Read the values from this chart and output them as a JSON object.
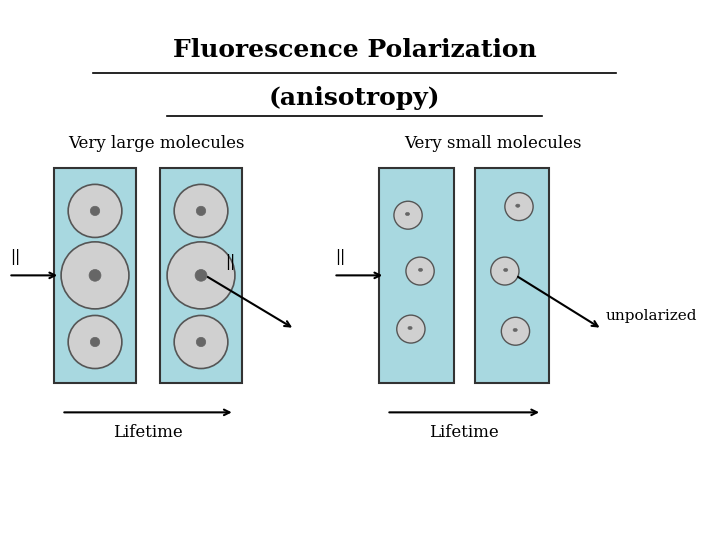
{
  "title_line1": "Fluorescence Polarization",
  "title_line2": "(anisotropy)",
  "bg_color": "#ffffff",
  "box_color": "#a8d8e0",
  "box_edge_color": "#333333",
  "large_label": "Very large molecules",
  "small_label": "Very small molecules",
  "unpolarized_label": "unpolarized",
  "lifetime_label": "Lifetime",
  "parallel_symbol": "||"
}
